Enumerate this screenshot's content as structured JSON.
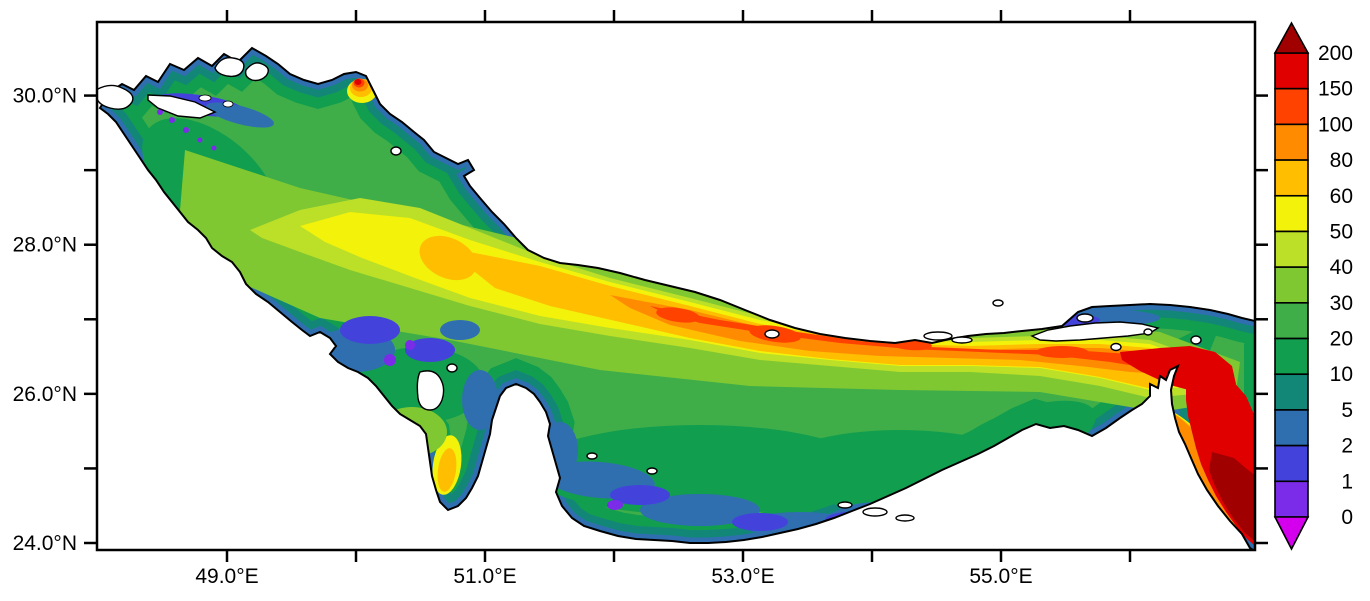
{
  "figure": {
    "background": "#ffffff",
    "title": ""
  },
  "chart_data": {
    "type": "heatmap",
    "subtype": "geographic-filled-contour-map",
    "region": "Persian Gulf, Strait of Hormuz and northwestern Gulf of Oman",
    "title": "",
    "xlabel": "",
    "ylabel": "",
    "grid": false,
    "land_color": "#ffffff",
    "coastline_color": "#000000",
    "x_axis": {
      "range_deg_east": [
        48.0,
        57.0
      ],
      "ticks_labeled": [
        {
          "value": 49,
          "label": "49.0°E"
        },
        {
          "value": 51,
          "label": "51.0°E"
        },
        {
          "value": 53,
          "label": "53.0°E"
        },
        {
          "value": 55,
          "label": "55.0°E"
        }
      ],
      "ticks_minor": [
        50,
        52,
        54,
        56
      ]
    },
    "y_axis": {
      "range_deg_north": [
        23.9,
        31.1
      ],
      "ticks_labeled": [
        {
          "value": 30,
          "label": "30.0°N"
        },
        {
          "value": 28,
          "label": "28.0°N"
        },
        {
          "value": 26,
          "label": "26.0°N"
        },
        {
          "value": 24,
          "label": "24.0°N"
        }
      ],
      "ticks_minor": [
        29,
        27,
        25
      ]
    },
    "colorbar": {
      "orientation": "vertical",
      "position": "right",
      "levels": [
        0,
        1,
        2,
        5,
        10,
        20,
        30,
        40,
        50,
        60,
        80,
        100,
        150,
        200
      ],
      "labels_top_to_bottom": [
        "200",
        "150",
        "100",
        "80",
        "60",
        "50",
        "40",
        "30",
        "20",
        "10",
        "5",
        "2",
        "1",
        "0"
      ],
      "bands": [
        {
          "min": 0,
          "max": 1,
          "color": "#7B2CE8"
        },
        {
          "min": 1,
          "max": 2,
          "color": "#4343DB"
        },
        {
          "min": 2,
          "max": 5,
          "color": "#2F6FB0"
        },
        {
          "min": 5,
          "max": 10,
          "color": "#128778"
        },
        {
          "min": 10,
          "max": 20,
          "color": "#119E4F"
        },
        {
          "min": 20,
          "max": 30,
          "color": "#3FAE49"
        },
        {
          "min": 30,
          "max": 40,
          "color": "#7FC832"
        },
        {
          "min": 40,
          "max": 50,
          "color": "#BCDF28"
        },
        {
          "min": 50,
          "max": 60,
          "color": "#F2F20A"
        },
        {
          "min": 60,
          "max": 80,
          "color": "#FFBE00"
        },
        {
          "min": 80,
          "max": 100,
          "color": "#FF8C00"
        },
        {
          "min": 100,
          "max": 150,
          "color": "#FF4200"
        },
        {
          "min": 150,
          "max": 200,
          "color": "#E00000"
        }
      ],
      "over_color": "#A00000",
      "under_color": "#D400ED"
    },
    "field_summary": [
      {
        "area": "coastal fringes on all shores",
        "value_band": "0-10"
      },
      {
        "area": "northwestern basin interior",
        "value_band": "20-60"
      },
      {
        "area": "central gulf axis (toward Iranian side)",
        "value_band": "60-100"
      },
      {
        "area": "deep channel approaching Strait of Hormuz",
        "value_band": "100-200"
      },
      {
        "area": "Gulf of Oman, southeast corner",
        "value_band": "over 200"
      },
      {
        "area": "Bahrain-Qatar embayment and southern shallows",
        "value_band": "0-5"
      },
      {
        "area": "isolated hotspot on northern coast near 50.1E 30.3N",
        "value_band": "60-200"
      },
      {
        "area": "Gulf of Salwa patch west of Qatar",
        "value_band": "50-80"
      }
    ]
  }
}
